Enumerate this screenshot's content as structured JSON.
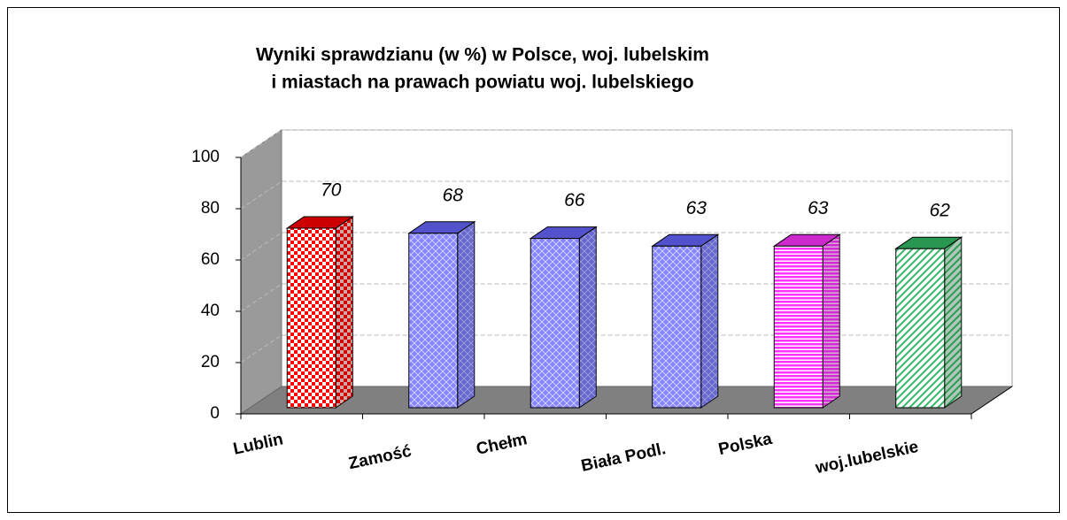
{
  "chart_data": {
    "type": "bar3d",
    "title": [
      "Wyniki sprawdzianu (w %)  w Polsce, woj. lubelskim",
      "i miastach na prawach powiatu woj. lubelskiego"
    ],
    "categories": [
      "Lublin",
      "Zamość",
      "Chełm",
      "Biała Podl.",
      "Polska",
      "woj.lubelskie"
    ],
    "values": [
      70,
      68,
      66,
      63,
      63,
      62
    ],
    "colors": [
      "#ff0000",
      "#6666ff",
      "#6666ff",
      "#6666ff",
      "#ff33ff",
      "#33bb66"
    ],
    "patterns": [
      "checker",
      "crosshatch",
      "crosshatch",
      "crosshatch",
      "horizontal",
      "diagonal"
    ],
    "ylim": [
      0,
      100
    ],
    "yticks": [
      0,
      20,
      40,
      60,
      80,
      100
    ],
    "grid": true
  }
}
